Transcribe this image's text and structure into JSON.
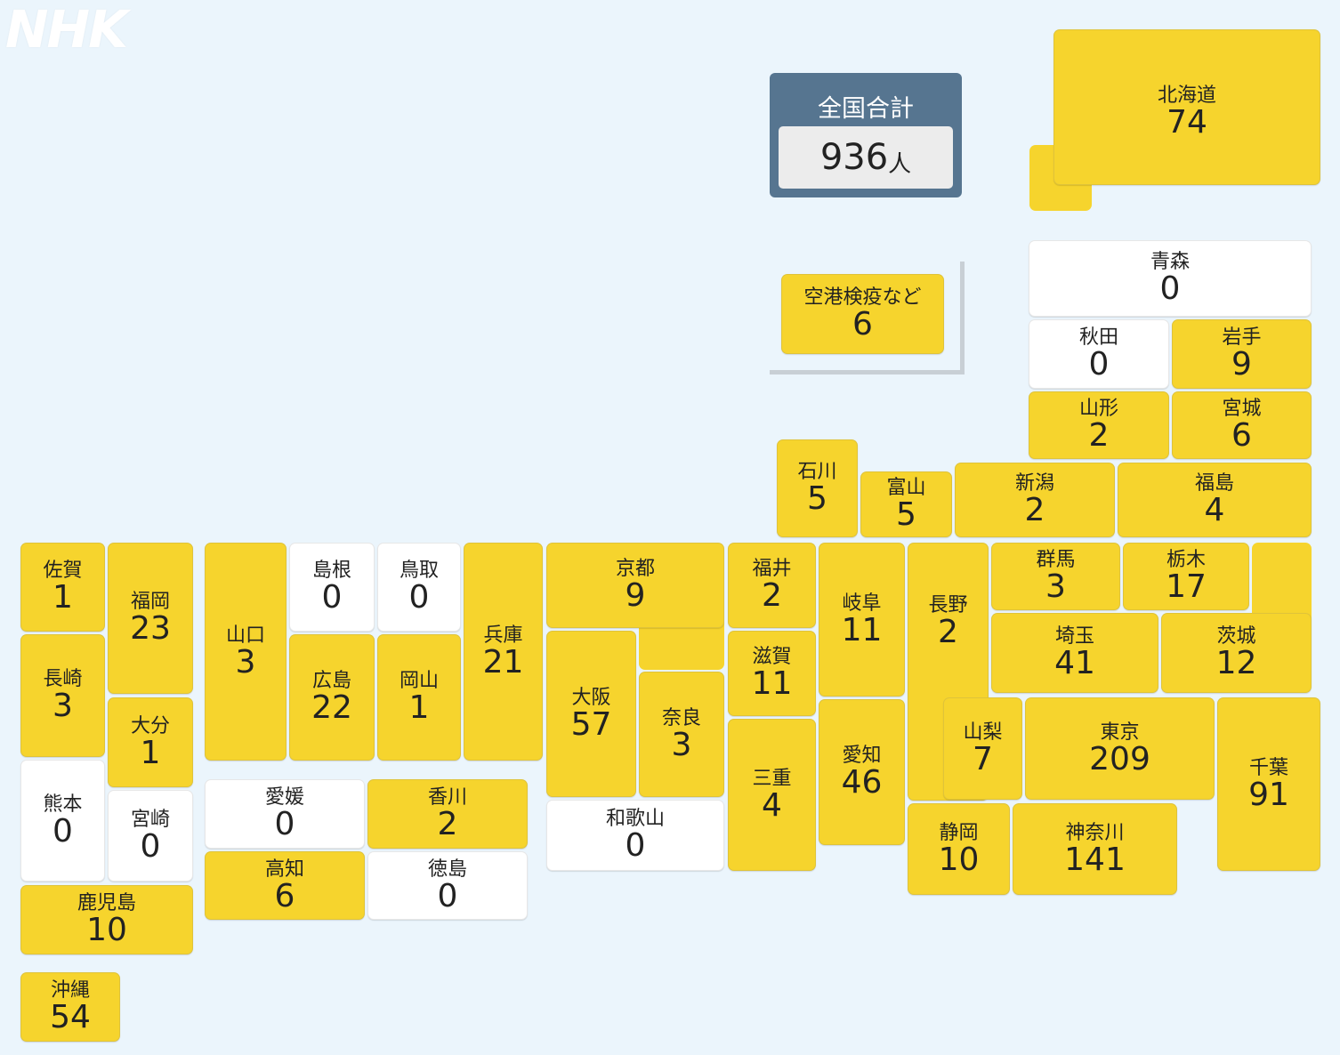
{
  "logo": "NHK",
  "total": {
    "label": "全国合計",
    "value": "936",
    "unit": "人"
  },
  "colors": {
    "background": "#ebf5fc",
    "active": "#f6d42d",
    "zero": "#ffffff",
    "total_panel": "#567590"
  },
  "prefectures": [
    {
      "id": "hokkaido",
      "name": "北海道",
      "value": "74"
    },
    {
      "id": "aomori",
      "name": "青森",
      "value": "0"
    },
    {
      "id": "akita",
      "name": "秋田",
      "value": "0"
    },
    {
      "id": "iwate",
      "name": "岩手",
      "value": "9"
    },
    {
      "id": "yamagata",
      "name": "山形",
      "value": "2"
    },
    {
      "id": "miyagi",
      "name": "宮城",
      "value": "6"
    },
    {
      "id": "ishikawa",
      "name": "石川",
      "value": "5"
    },
    {
      "id": "toyama",
      "name": "富山",
      "value": "5"
    },
    {
      "id": "niigata",
      "name": "新潟",
      "value": "2"
    },
    {
      "id": "fukushima",
      "name": "福島",
      "value": "4"
    },
    {
      "id": "saga",
      "name": "佐賀",
      "value": "1"
    },
    {
      "id": "fukuoka",
      "name": "福岡",
      "value": "23"
    },
    {
      "id": "yamaguchi",
      "name": "山口",
      "value": "3"
    },
    {
      "id": "shimane",
      "name": "島根",
      "value": "0"
    },
    {
      "id": "tottori",
      "name": "鳥取",
      "value": "0"
    },
    {
      "id": "hyogo",
      "name": "兵庫",
      "value": "21"
    },
    {
      "id": "kyoto",
      "name": "京都",
      "value": "9"
    },
    {
      "id": "fukui",
      "name": "福井",
      "value": "2"
    },
    {
      "id": "gifu",
      "name": "岐阜",
      "value": "11"
    },
    {
      "id": "nagano",
      "name": "長野",
      "value": "2"
    },
    {
      "id": "gunma",
      "name": "群馬",
      "value": "3"
    },
    {
      "id": "tochigi",
      "name": "栃木",
      "value": "17"
    },
    {
      "id": "nagasaki",
      "name": "長崎",
      "value": "3"
    },
    {
      "id": "oita",
      "name": "大分",
      "value": "1"
    },
    {
      "id": "hiroshima",
      "name": "広島",
      "value": "22"
    },
    {
      "id": "okayama",
      "name": "岡山",
      "value": "1"
    },
    {
      "id": "osaka",
      "name": "大阪",
      "value": "57"
    },
    {
      "id": "nara",
      "name": "奈良",
      "value": "3"
    },
    {
      "id": "shiga",
      "name": "滋賀",
      "value": "11"
    },
    {
      "id": "saitama",
      "name": "埼玉",
      "value": "41"
    },
    {
      "id": "ibaraki",
      "name": "茨城",
      "value": "12"
    },
    {
      "id": "kumamoto",
      "name": "熊本",
      "value": "0"
    },
    {
      "id": "miyazaki",
      "name": "宮崎",
      "value": "0"
    },
    {
      "id": "ehime",
      "name": "愛媛",
      "value": "0"
    },
    {
      "id": "kagawa",
      "name": "香川",
      "value": "2"
    },
    {
      "id": "kochi",
      "name": "高知",
      "value": "6"
    },
    {
      "id": "tokushima",
      "name": "徳島",
      "value": "0"
    },
    {
      "id": "wakayama",
      "name": "和歌山",
      "value": "0"
    },
    {
      "id": "mie",
      "name": "三重",
      "value": "4"
    },
    {
      "id": "aichi",
      "name": "愛知",
      "value": "46"
    },
    {
      "id": "yamanashi",
      "name": "山梨",
      "value": "7"
    },
    {
      "id": "tokyo",
      "name": "東京",
      "value": "209"
    },
    {
      "id": "chiba",
      "name": "千葉",
      "value": "91"
    },
    {
      "id": "shizuoka",
      "name": "静岡",
      "value": "10"
    },
    {
      "id": "kanagawa",
      "name": "神奈川",
      "value": "141"
    },
    {
      "id": "kagoshima",
      "name": "鹿児島",
      "value": "10"
    },
    {
      "id": "okinawa",
      "name": "沖縄",
      "value": "54"
    },
    {
      "id": "airport",
      "name": "空港検疫など",
      "value": "6"
    }
  ]
}
